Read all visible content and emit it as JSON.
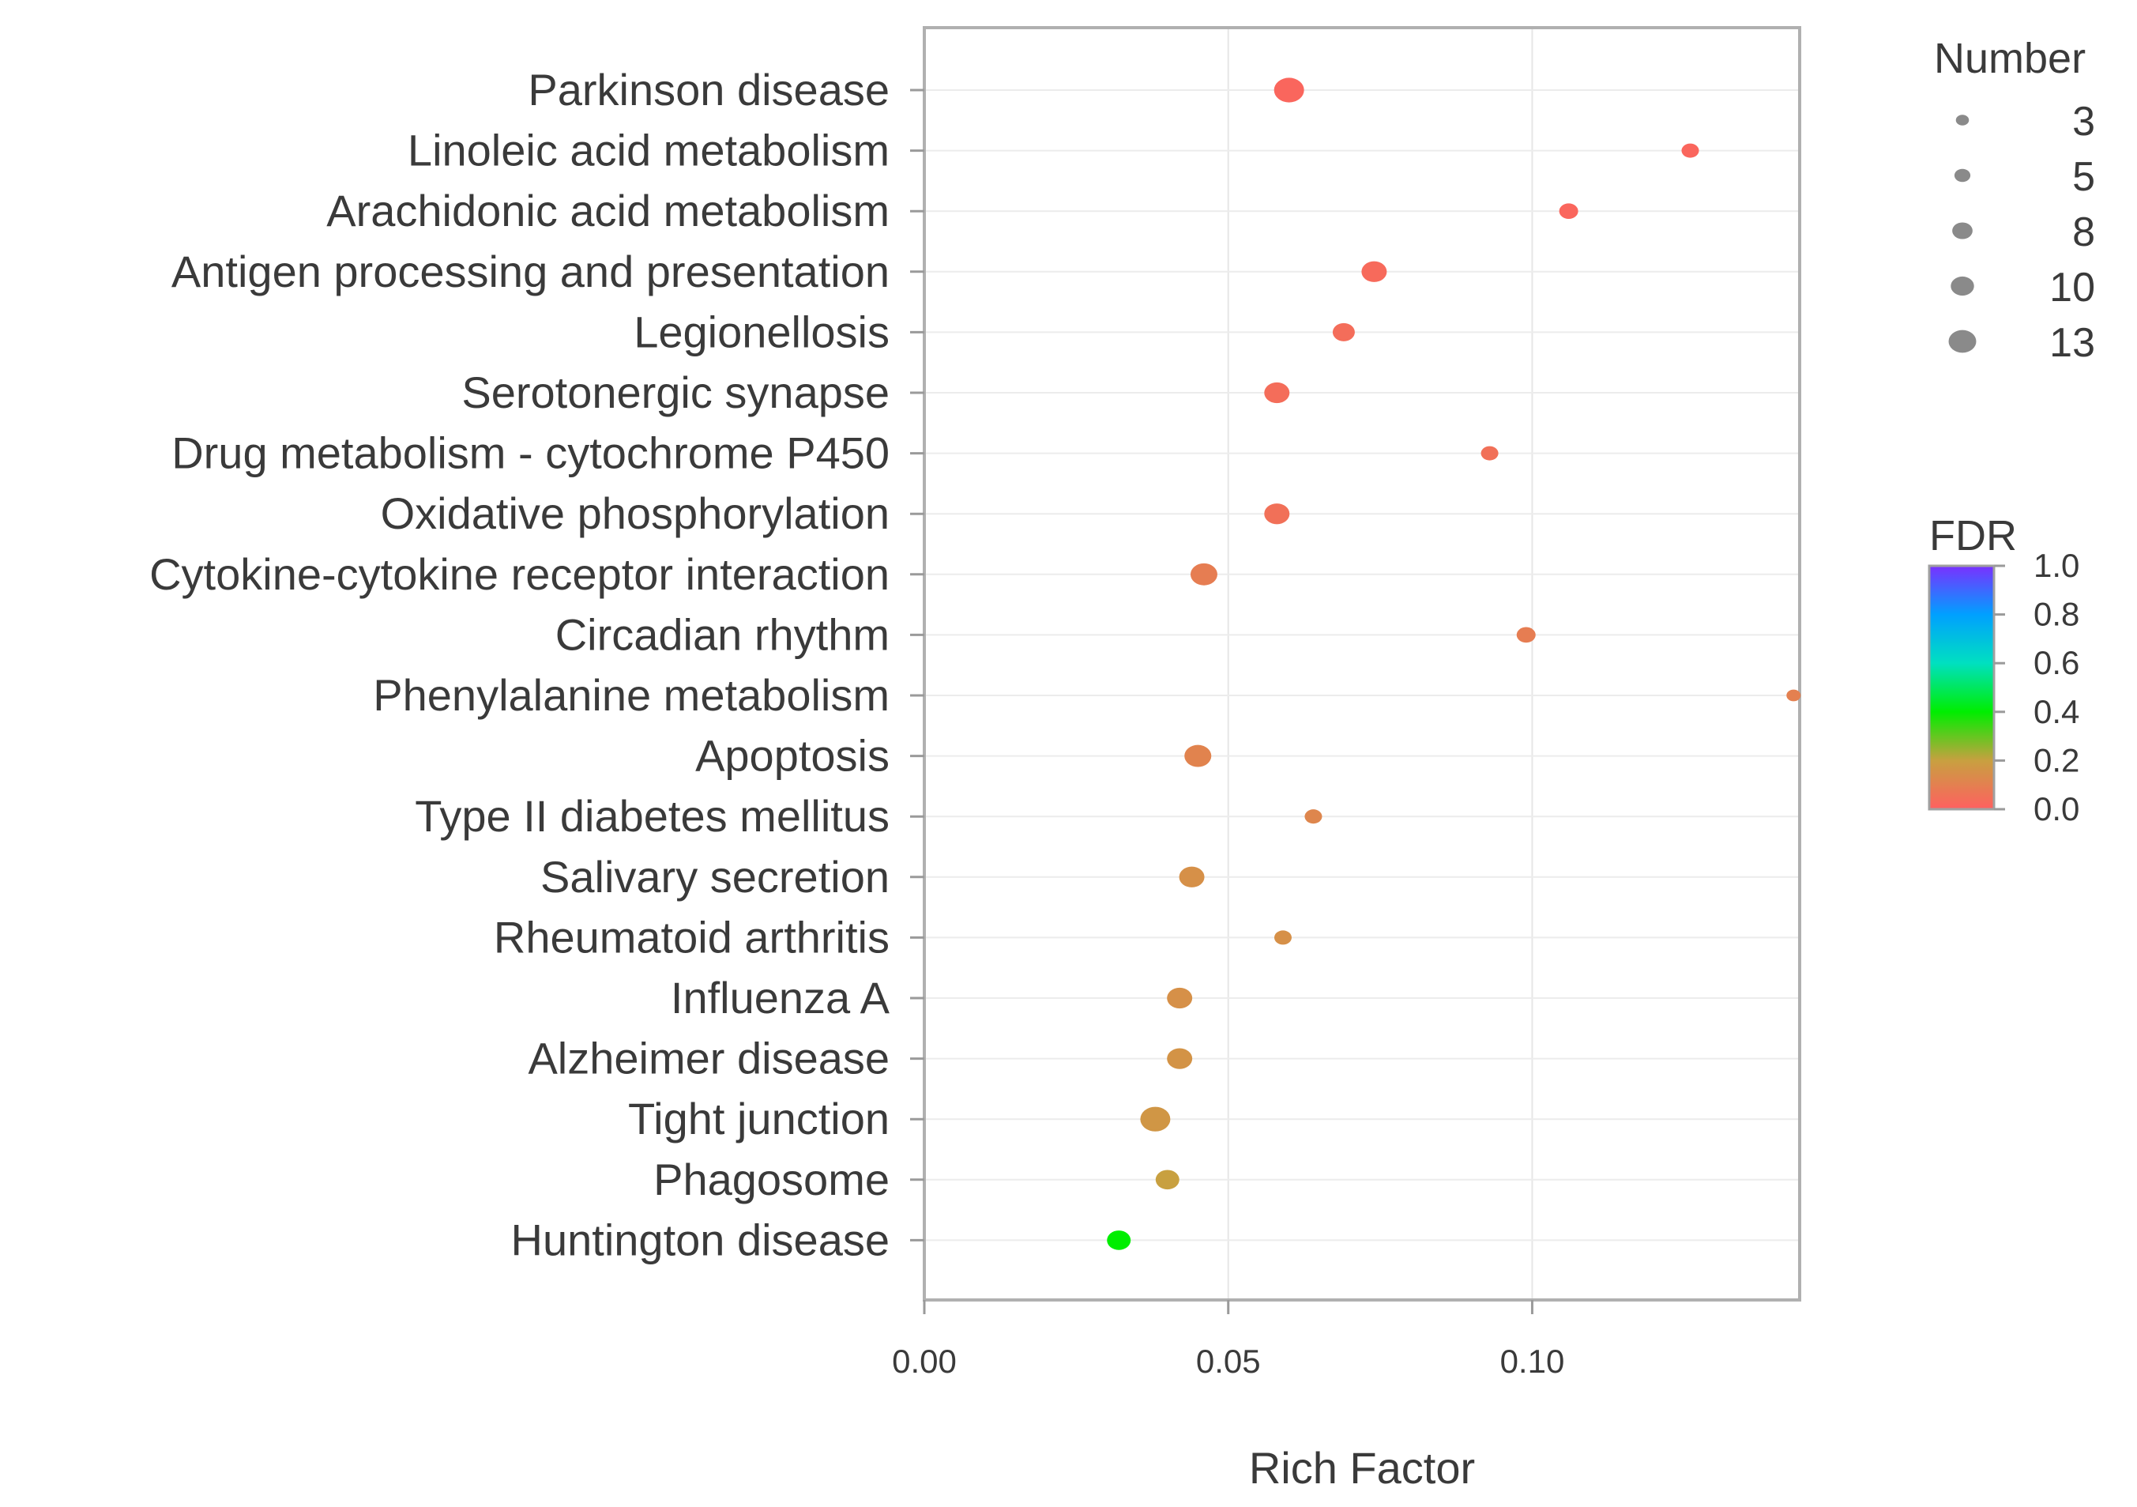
{
  "chart_data": {
    "type": "scatter",
    "title": "",
    "xlabel": "Rich Factor",
    "ylabel": "",
    "xlim": [
      0.0,
      0.144
    ],
    "x_ticks": [
      {
        "value": 0.0,
        "label": "0.00"
      },
      {
        "value": 0.05,
        "label": "0.05"
      },
      {
        "value": 0.1,
        "label": "0.10"
      }
    ],
    "grid": true,
    "points": [
      {
        "category": "Parkinson disease",
        "rich_factor": 0.06,
        "fdr": 0.02,
        "number": 13
      },
      {
        "category": "Linoleic acid metabolism",
        "rich_factor": 0.126,
        "fdr": 0.02,
        "number": 5
      },
      {
        "category": "Arachidonic acid metabolism",
        "rich_factor": 0.106,
        "fdr": 0.02,
        "number": 6
      },
      {
        "category": "Antigen processing and presentation",
        "rich_factor": 0.074,
        "fdr": 0.03,
        "number": 10
      },
      {
        "category": "Legionellosis",
        "rich_factor": 0.069,
        "fdr": 0.04,
        "number": 8
      },
      {
        "category": "Serotonergic synapse",
        "rich_factor": 0.058,
        "fdr": 0.04,
        "number": 10
      },
      {
        "category": "Drug metabolism - cytochrome P450",
        "rich_factor": 0.093,
        "fdr": 0.05,
        "number": 5
      },
      {
        "category": "Oxidative phosphorylation",
        "rich_factor": 0.058,
        "fdr": 0.05,
        "number": 10
      },
      {
        "category": "Cytokine-cytokine receptor interaction",
        "rich_factor": 0.046,
        "fdr": 0.09,
        "number": 11
      },
      {
        "category": "Circadian rhythm",
        "rich_factor": 0.099,
        "fdr": 0.09,
        "number": 6
      },
      {
        "category": "Phenylalanine metabolism",
        "rich_factor": 0.143,
        "fdr": 0.1,
        "number": 3
      },
      {
        "category": "Apoptosis",
        "rich_factor": 0.045,
        "fdr": 0.11,
        "number": 11
      },
      {
        "category": "Type II diabetes mellitus",
        "rich_factor": 0.064,
        "fdr": 0.12,
        "number": 5
      },
      {
        "category": "Salivary secretion",
        "rich_factor": 0.044,
        "fdr": 0.15,
        "number": 10
      },
      {
        "category": "Rheumatoid arthritis",
        "rich_factor": 0.059,
        "fdr": 0.15,
        "number": 5
      },
      {
        "category": "Influenza A",
        "rich_factor": 0.042,
        "fdr": 0.15,
        "number": 10
      },
      {
        "category": "Alzheimer disease",
        "rich_factor": 0.042,
        "fdr": 0.16,
        "number": 10
      },
      {
        "category": "Tight junction",
        "rich_factor": 0.038,
        "fdr": 0.17,
        "number": 13
      },
      {
        "category": "Phagosome",
        "rich_factor": 0.04,
        "fdr": 0.2,
        "number": 9
      },
      {
        "category": "Huntington disease",
        "rich_factor": 0.032,
        "fdr": 0.4,
        "number": 9
      }
    ],
    "size_legend": {
      "title": "Number",
      "values": [
        3,
        5,
        8,
        10,
        13
      ]
    },
    "color_legend": {
      "title": "FDR",
      "range": [
        0.0,
        1.0
      ],
      "ticks": [
        "1.0",
        "0.8",
        "0.6",
        "0.4",
        "0.2",
        "0.0"
      ],
      "stops": [
        {
          "value": 0.0,
          "color": "#ff6060"
        },
        {
          "value": 0.2,
          "color": "#c8a040"
        },
        {
          "value": 0.4,
          "color": "#00ee00"
        },
        {
          "value": 0.6,
          "color": "#00e0c0"
        },
        {
          "value": 0.8,
          "color": "#00a0ff"
        },
        {
          "value": 1.0,
          "color": "#7a30ff"
        }
      ]
    }
  }
}
